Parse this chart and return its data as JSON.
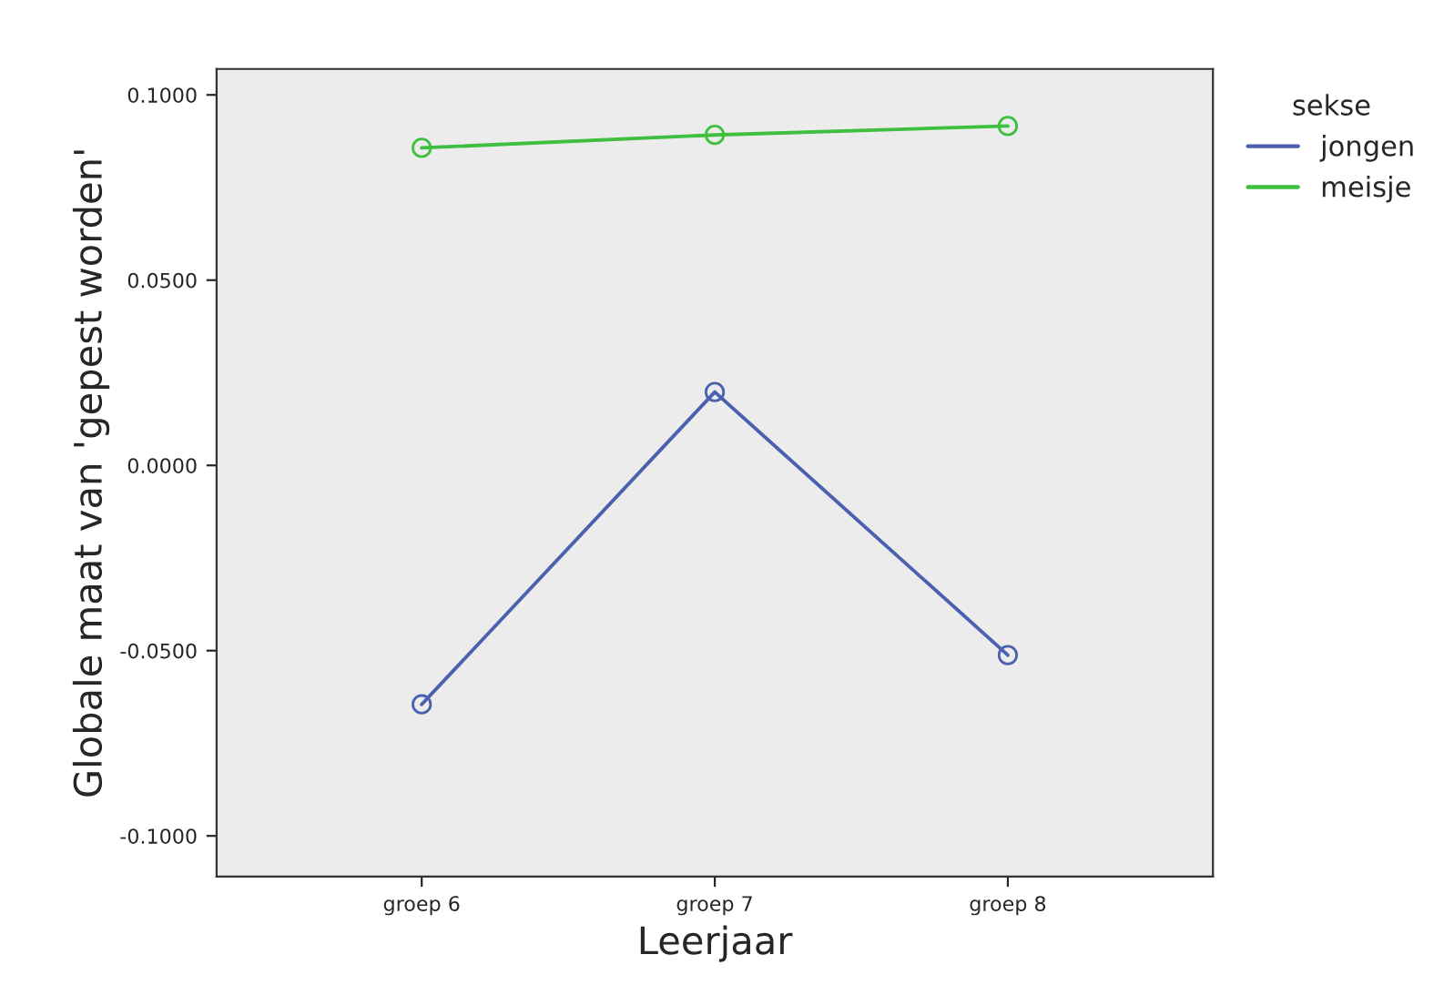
{
  "chart_data": {
    "type": "line",
    "xlabel": "Leerjaar",
    "ylabel": "Globale maat van 'gepest worden'",
    "legend_title": "sekse",
    "categories": [
      "groep 6",
      "groep 7",
      "groep 8"
    ],
    "series": [
      {
        "name": "jongen",
        "color": "#4b61b0",
        "values": [
          -0.0645,
          0.0198,
          -0.0512
        ]
      },
      {
        "name": "meisje",
        "color": "#3fbf3f",
        "values": [
          0.0857,
          0.0892,
          0.0916
        ]
      }
    ],
    "ylim": [
      -0.111,
      0.107
    ],
    "yticks": [
      {
        "value": -0.1,
        "label": "-0.1000"
      },
      {
        "value": -0.05,
        "label": "-0.0500"
      },
      {
        "value": 0,
        "label": "0.0000"
      },
      {
        "value": 0.05,
        "label": "0.0500"
      },
      {
        "value": 0.1,
        "label": "0.1000"
      }
    ],
    "marker": "circle",
    "line_style": "solid",
    "grid": false,
    "legend": "top right"
  }
}
